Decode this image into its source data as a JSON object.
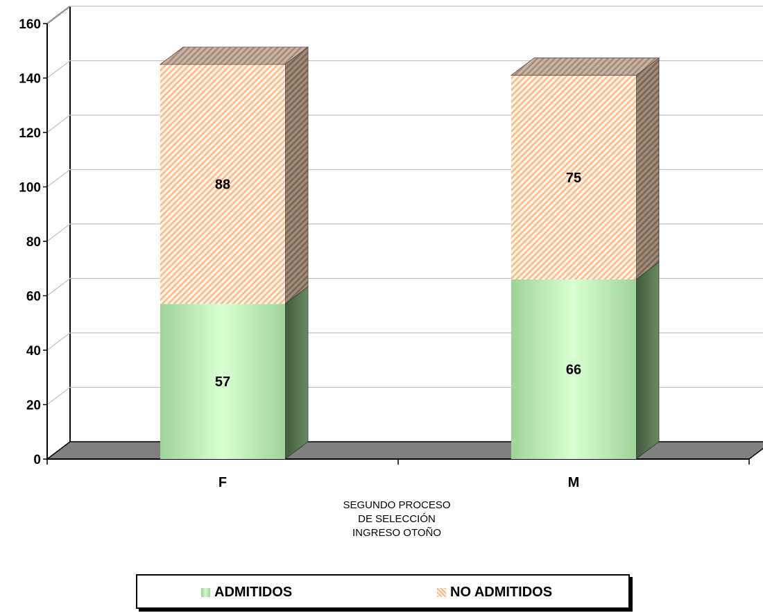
{
  "chart_data": {
    "type": "bar",
    "stacked": true,
    "three_d": true,
    "categories": [
      "F",
      "M"
    ],
    "series": [
      {
        "name": "ADMITIDOS",
        "values": [
          57,
          66
        ],
        "color": "#c8f5c2"
      },
      {
        "name": "NO ADMITIDOS",
        "values": [
          88,
          75
        ],
        "color": "#f8c8a0"
      }
    ],
    "data_labels": true,
    "ylim": [
      0,
      160
    ],
    "yticks": [
      0,
      20,
      40,
      60,
      80,
      100,
      120,
      140,
      160
    ],
    "grid": true,
    "xlabel_lines": [
      "SEGUNDO PROCESO",
      "DE SELECCIÓN",
      "INGRESO OTOÑO"
    ],
    "legend_position": "bottom"
  }
}
